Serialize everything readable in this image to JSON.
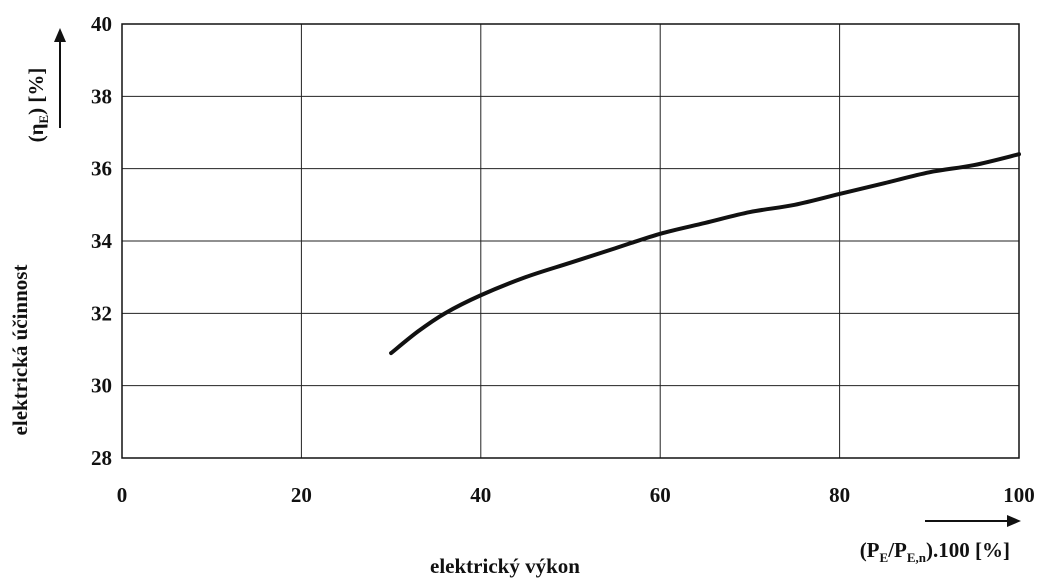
{
  "chart_data": {
    "type": "line",
    "title": "",
    "xlabel": "elektrický výkon",
    "xunits": {
      "open": "(P",
      "sub1": "E",
      "slash": "/P",
      "sub2": "E,n",
      "close": ").100 [%]"
    },
    "ylabel": "elektrická účinnost",
    "yunits": {
      "open": "(η",
      "sub": "E",
      "close": ") [%]"
    },
    "xlim": [
      0,
      100
    ],
    "ylim": [
      28,
      40
    ],
    "xticks": [
      "0",
      "20",
      "40",
      "60",
      "80",
      "100"
    ],
    "yticks": [
      "28",
      "30",
      "32",
      "34",
      "36",
      "38",
      "40"
    ],
    "grid": true,
    "line_color": "#111111",
    "series": [
      {
        "x": [
          30,
          33,
          36,
          40,
          45,
          50,
          55,
          60,
          65,
          70,
          75,
          80,
          85,
          90,
          95,
          100
        ],
        "y": [
          30.9,
          31.5,
          32.0,
          32.5,
          33.0,
          33.4,
          33.8,
          34.2,
          34.5,
          34.8,
          35.0,
          35.3,
          35.6,
          35.9,
          36.1,
          36.4
        ]
      }
    ]
  }
}
